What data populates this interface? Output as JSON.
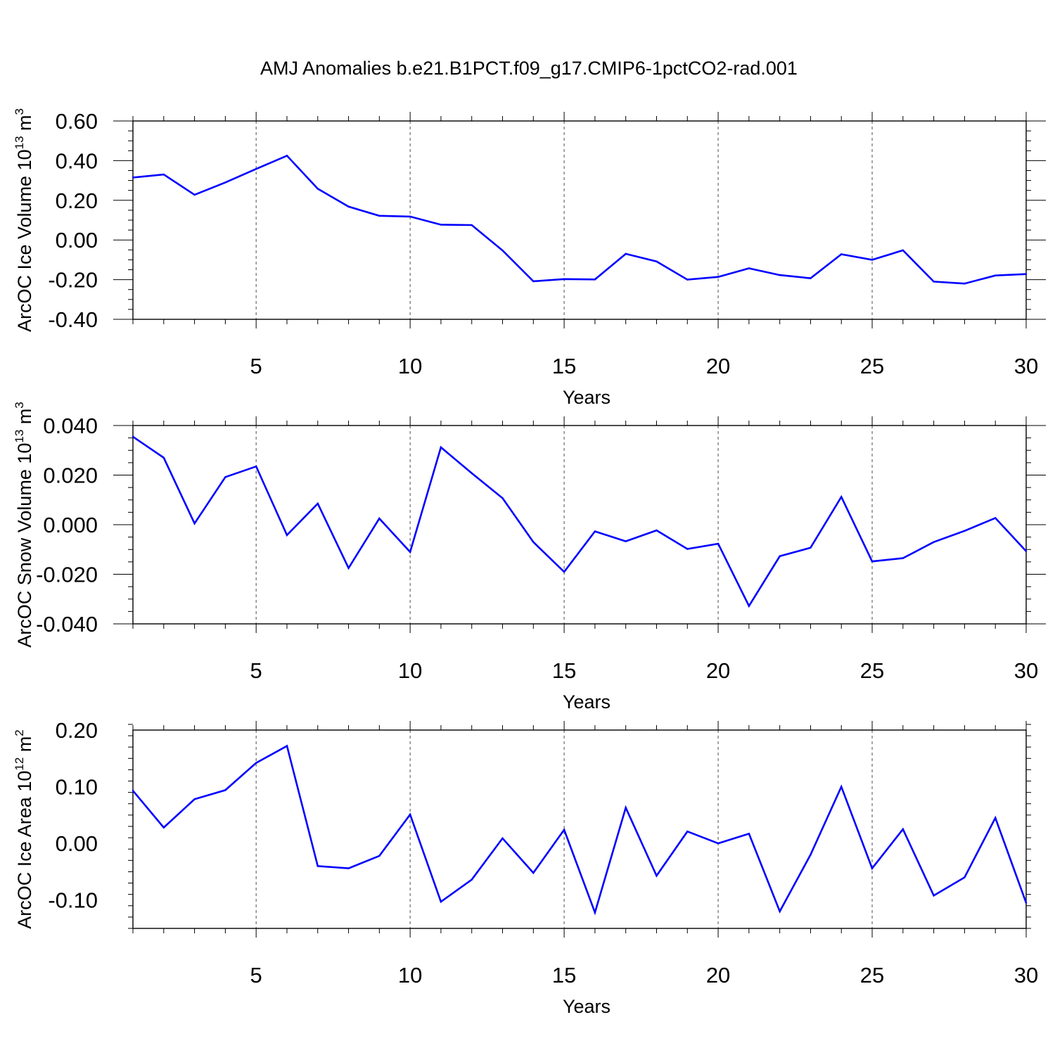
{
  "title": "AMJ Anomalies b.e21.B1PCT.f09_g17.CMIP6-1pctCO2-rad.001",
  "colors": {
    "line": "#0000ff",
    "axis": "#000000",
    "grid": "#000000"
  },
  "chart_data": [
    {
      "type": "line",
      "xlabel": "Years",
      "ylabel": {
        "text": "ArcOC Ice Volume 10",
        "exp": "13",
        "unit_prefix": " m",
        "unit_exp": "3"
      },
      "xlim": [
        1,
        30
      ],
      "ylim": [
        -0.4,
        0.6
      ],
      "xticks": [
        5,
        10,
        15,
        20,
        25,
        30
      ],
      "xtick_labels": [
        "5",
        "10",
        "15",
        "20",
        "25",
        "30"
      ],
      "yticks": [
        -0.4,
        -0.2,
        0.0,
        0.2,
        0.4,
        0.6
      ],
      "ytick_labels": [
        "-0.40",
        "-0.20",
        "0.00",
        "0.20",
        "0.40",
        "0.60"
      ],
      "x_minor_step": 1,
      "y_minor_step": 0.05,
      "grid": "x-major-dashed",
      "x": [
        1,
        2,
        3,
        4,
        5,
        6,
        7,
        8,
        9,
        10,
        11,
        12,
        13,
        14,
        15,
        16,
        17,
        18,
        19,
        20,
        21,
        22,
        23,
        24,
        25,
        26,
        27,
        28,
        29,
        30
      ],
      "values": [
        0.315,
        0.33,
        0.228,
        0.29,
        0.358,
        0.425,
        0.258,
        0.168,
        0.122,
        0.118,
        0.077,
        0.075,
        -0.053,
        -0.208,
        -0.197,
        -0.199,
        -0.07,
        -0.108,
        -0.2,
        -0.186,
        -0.143,
        -0.177,
        -0.193,
        -0.072,
        -0.1,
        -0.052,
        -0.21,
        -0.22,
        -0.179,
        -0.172
      ]
    },
    {
      "type": "line",
      "xlabel": "Years",
      "ylabel": {
        "text": "ArcOC Snow Volume 10",
        "exp": "13",
        "unit_prefix": " m",
        "unit_exp": "3"
      },
      "xlim": [
        1,
        30
      ],
      "ylim": [
        -0.04,
        0.04
      ],
      "xticks": [
        5,
        10,
        15,
        20,
        25,
        30
      ],
      "xtick_labels": [
        "5",
        "10",
        "15",
        "20",
        "25",
        "30"
      ],
      "yticks": [
        -0.04,
        -0.02,
        0.0,
        0.02,
        0.04
      ],
      "ytick_labels": [
        "-0.040",
        "-0.020",
        "0.000",
        "0.020",
        "0.040"
      ],
      "x_minor_step": 1,
      "y_minor_step": 0.005,
      "grid": "x-major-dashed",
      "x": [
        1,
        2,
        3,
        4,
        5,
        6,
        7,
        8,
        9,
        10,
        11,
        12,
        13,
        14,
        15,
        16,
        17,
        18,
        19,
        20,
        21,
        22,
        23,
        24,
        25,
        26,
        27,
        28,
        29,
        30
      ],
      "values": [
        0.0355,
        0.027,
        0.0005,
        0.0192,
        0.0235,
        -0.0042,
        0.0085,
        -0.0175,
        0.0025,
        -0.011,
        0.0312,
        0.0208,
        0.0107,
        -0.007,
        -0.019,
        -0.0027,
        -0.0067,
        -0.0023,
        -0.0098,
        -0.0077,
        -0.0328,
        -0.0127,
        -0.0093,
        0.0112,
        -0.0148,
        -0.0135,
        -0.007,
        -0.0025,
        0.0027,
        -0.0107
      ]
    },
    {
      "type": "line",
      "xlabel": "Years",
      "ylabel": {
        "text": "ArcOC Ice Area 10",
        "exp": "12",
        "unit_prefix": " m",
        "unit_exp": "2"
      },
      "xlim": [
        1,
        30
      ],
      "ylim": [
        -0.15,
        0.2
      ],
      "xticks": [
        5,
        10,
        15,
        20,
        25,
        30
      ],
      "xtick_labels": [
        "5",
        "10",
        "15",
        "20",
        "25",
        "30"
      ],
      "yticks": [
        -0.1,
        0.0,
        0.1,
        0.2
      ],
      "ytick_labels": [
        "-0.10",
        "0.00",
        "0.10",
        "0.20"
      ],
      "x_minor_step": 1,
      "y_minor_step": 0.02,
      "grid": "x-major-dashed",
      "x": [
        1,
        2,
        3,
        4,
        5,
        6,
        7,
        8,
        9,
        10,
        11,
        12,
        13,
        14,
        15,
        16,
        17,
        18,
        19,
        20,
        21,
        22,
        23,
        24,
        25,
        26,
        27,
        28,
        29,
        30
      ],
      "values": [
        0.093,
        0.028,
        0.078,
        0.094,
        0.142,
        0.172,
        -0.04,
        -0.044,
        -0.022,
        0.051,
        -0.103,
        -0.064,
        0.009,
        -0.052,
        0.024,
        -0.122,
        0.063,
        -0.057,
        0.021,
        0.0,
        0.017,
        -0.12,
        -0.02,
        0.1,
        -0.044,
        0.025,
        -0.092,
        -0.06,
        0.045,
        -0.105
      ]
    }
  ]
}
